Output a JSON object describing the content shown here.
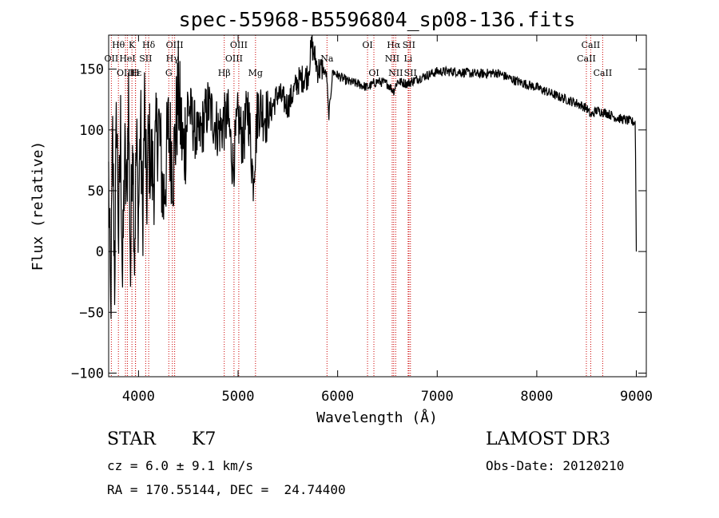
{
  "chart_data": {
    "type": "line",
    "title": "spec-55968-B5596804_sp08-136.fits",
    "xlabel": "Wavelength (Å)",
    "ylabel": "Flux (relative)",
    "xlim": [
      3700,
      9100
    ],
    "ylim": [
      -103,
      178
    ],
    "xticks": [
      4000,
      5000,
      6000,
      7000,
      8000,
      9000
    ],
    "yticks": [
      -100,
      -50,
      0,
      50,
      100,
      150
    ],
    "series": [
      {
        "name": "spectrum",
        "color": "#000000",
        "anchors": [
          [
            3700,
            60
          ],
          [
            3720,
            -55
          ],
          [
            3740,
            90
          ],
          [
            3760,
            -20
          ],
          [
            3780,
            120
          ],
          [
            3800,
            10
          ],
          [
            3820,
            100
          ],
          [
            3840,
            -30
          ],
          [
            3860,
            80
          ],
          [
            3880,
            40
          ],
          [
            3900,
            130
          ],
          [
            3920,
            -20
          ],
          [
            3940,
            110
          ],
          [
            3960,
            0
          ],
          [
            3980,
            90
          ],
          [
            4000,
            30
          ],
          [
            4020,
            110
          ],
          [
            4040,
            20
          ],
          [
            4060,
            120
          ],
          [
            4080,
            40
          ],
          [
            4100,
            90
          ],
          [
            4150,
            60
          ],
          [
            4200,
            110
          ],
          [
            4250,
            40
          ],
          [
            4300,
            100
          ],
          [
            4350,
            70
          ],
          [
            4400,
            130
          ],
          [
            4450,
            80
          ],
          [
            4500,
            120
          ],
          [
            4600,
            90
          ],
          [
            4700,
            120
          ],
          [
            4800,
            100
          ],
          [
            4900,
            110
          ],
          [
            4950,
            70
          ],
          [
            5000,
            110
          ],
          [
            5050,
            90
          ],
          [
            5100,
            120
          ],
          [
            5150,
            60
          ],
          [
            5200,
            120
          ],
          [
            5300,
            110
          ],
          [
            5400,
            130
          ],
          [
            5500,
            120
          ],
          [
            5600,
            140
          ],
          [
            5700,
            145
          ],
          [
            5740,
            170
          ],
          [
            5800,
            150
          ],
          [
            5850,
            150
          ],
          [
            5890,
            145
          ],
          [
            5910,
            110
          ],
          [
            5950,
            148
          ],
          [
            6000,
            145
          ],
          [
            6100,
            140
          ],
          [
            6200,
            138
          ],
          [
            6300,
            135
          ],
          [
            6400,
            140
          ],
          [
            6500,
            138
          ],
          [
            6563,
            132
          ],
          [
            6600,
            140
          ],
          [
            6700,
            138
          ],
          [
            6800,
            142
          ],
          [
            6900,
            145
          ],
          [
            7000,
            148
          ],
          [
            7200,
            148
          ],
          [
            7400,
            146
          ],
          [
            7600,
            147
          ],
          [
            7800,
            140
          ],
          [
            8000,
            135
          ],
          [
            8200,
            128
          ],
          [
            8400,
            122
          ],
          [
            8500,
            118
          ],
          [
            8542,
            112
          ],
          [
            8600,
            116
          ],
          [
            8700,
            114
          ],
          [
            8800,
            110
          ],
          [
            8900,
            108
          ],
          [
            8990,
            106
          ],
          [
            9000,
            0
          ]
        ]
      }
    ],
    "line_markers": [
      {
        "label": "Hθ",
        "x": 3798,
        "row": 0
      },
      {
        "label": "OII",
        "x": 3727,
        "row": 1
      },
      {
        "label": "OIII",
        "x": 3869,
        "row": 2
      },
      {
        "label": "K",
        "x": 3934,
        "row": 0
      },
      {
        "label": "HeI",
        "x": 3889,
        "row": 1
      },
      {
        "label": "Hε",
        "x": 3970,
        "row": 2
      },
      {
        "label": "H",
        "x": 3969,
        "row": 2
      },
      {
        "label": "Hδ",
        "x": 4102,
        "row": 0
      },
      {
        "label": "SII",
        "x": 4072,
        "row": 1
      },
      {
        "label": "OIII",
        "x": 4363,
        "row": 0
      },
      {
        "label": "Hγ",
        "x": 4340,
        "row": 1
      },
      {
        "label": "G",
        "x": 4304,
        "row": 2
      },
      {
        "label": "OIII",
        "x": 5007,
        "row": 0
      },
      {
        "label": "OIII",
        "x": 4959,
        "row": 1
      },
      {
        "label": "Hβ",
        "x": 4861,
        "row": 2
      },
      {
        "label": "Mg",
        "x": 5175,
        "row": 2
      },
      {
        "label": "Na",
        "x": 5893,
        "row": 1
      },
      {
        "label": "OI",
        "x": 6300,
        "row": 0
      },
      {
        "label": "OI",
        "x": 6364,
        "row": 2
      },
      {
        "label": "Hα",
        "x": 6563,
        "row": 0
      },
      {
        "label": "SII",
        "x": 6716,
        "row": 0
      },
      {
        "label": "NII",
        "x": 6548,
        "row": 1
      },
      {
        "label": "Li",
        "x": 6708,
        "row": 1
      },
      {
        "label": "NII",
        "x": 6583,
        "row": 2
      },
      {
        "label": "SII",
        "x": 6731,
        "row": 2
      },
      {
        "label": "CaII",
        "x": 8542,
        "row": 0
      },
      {
        "label": "CaII",
        "x": 8498,
        "row": 1
      },
      {
        "label": "CaII",
        "x": 8662,
        "row": 2
      }
    ]
  },
  "info": {
    "class_label": "STAR",
    "subclass": "K7",
    "cz_text": "cz = 6.0 ± 9.1 km/s",
    "coords_text": "RA = 170.55144, DEC =  24.74400",
    "survey": "LAMOST DR3",
    "obs_date": "Obs-Date: 20120210"
  },
  "colors": {
    "axis": "#000000",
    "marker_line": "#cc0000",
    "spectrum": "#000000"
  }
}
